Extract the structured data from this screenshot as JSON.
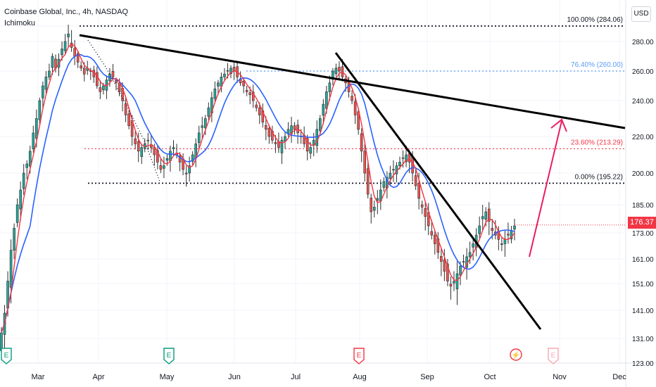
{
  "header": {
    "symbol_line": "Coinbase Global, Inc., 4h, NASDAQ",
    "indicator": "Ichimoku"
  },
  "currency": "USD",
  "last_price": "176.37",
  "colors": {
    "candle_up": "#26a69a",
    "candle_down": "#ef5350",
    "candle_body": "#2e2e2e",
    "conversion_line": "#f23645",
    "base_line": "#2962ff",
    "trendline": "#000000",
    "fib_100": "#131722",
    "fib_764": "#5b9cf6",
    "fib_236": "#f23645",
    "fib_0": "#131722",
    "arrow": "#e91e63"
  },
  "chart_data": {
    "type": "candlestick",
    "ylim": [
      123,
      295
    ],
    "y_ticks": [
      "284.06",
      "280.00",
      "260.00",
      "240.00",
      "220.00",
      "200.00",
      "185.00",
      "173.00",
      "161.00",
      "151.00",
      "141.00",
      "131.00",
      "123.00"
    ],
    "x_labels": [
      "Mar",
      "Apr",
      "May",
      "Jun",
      "Jul",
      "Aug",
      "Sep",
      "Oct",
      "Nov",
      "Dec"
    ],
    "event_markers": [
      {
        "month": "Mar",
        "label": "E",
        "kind": "earnings"
      },
      {
        "month": "May",
        "label": "E",
        "kind": "earnings"
      },
      {
        "month": "Aug",
        "label": "E",
        "kind": "earnings-red"
      },
      {
        "month": "Oct",
        "label": "⚡",
        "kind": "split"
      },
      {
        "month": "Oct",
        "label": "E",
        "kind": "earnings-future"
      }
    ],
    "fib_levels": [
      {
        "label": "100.00% (284.06)",
        "value": 284.06
      },
      {
        "label": "76.40% (260.00)",
        "value": 260.0
      },
      {
        "label": "23.60% (213.29)",
        "value": 213.29
      },
      {
        "label": "0.00% (195.22)",
        "value": 195.22
      }
    ],
    "series": [
      {
        "name": "Ichimoku",
        "closes": [
          133,
          140,
          152,
          165,
          175,
          185,
          192,
          200,
          205,
          212,
          222,
          230,
          240,
          250,
          256,
          260,
          270,
          262,
          268,
          275,
          280,
          282,
          276,
          270,
          266,
          262,
          258,
          262,
          260,
          256,
          250,
          246,
          250,
          254,
          258,
          256,
          252,
          246,
          240,
          232,
          226,
          220,
          216,
          212,
          214,
          216,
          218,
          214,
          210,
          206,
          202,
          204,
          208,
          212,
          214,
          210,
          206,
          202,
          200,
          204,
          210,
          216,
          222,
          226,
          230,
          236,
          242,
          248,
          252,
          256,
          258,
          260,
          262,
          260,
          256,
          252,
          250,
          246,
          244,
          240,
          236,
          232,
          228,
          224,
          220,
          218,
          216,
          214,
          218,
          220,
          224,
          226,
          224,
          222,
          220,
          216,
          212,
          214,
          218,
          224,
          230,
          238,
          246,
          252,
          260,
          262,
          260,
          256,
          252,
          246,
          240,
          232,
          224,
          212,
          200,
          190,
          182,
          184,
          188,
          192,
          196,
          198,
          200,
          202,
          204,
          206,
          208,
          210,
          206,
          200,
          194,
          188,
          184,
          180,
          176,
          172,
          168,
          164,
          160,
          156,
          152,
          150,
          152,
          155,
          158,
          160,
          162,
          164,
          168,
          172,
          176,
          180,
          182,
          178,
          174,
          172,
          170,
          168,
          170,
          172,
          174,
          176
        ]
      }
    ]
  }
}
